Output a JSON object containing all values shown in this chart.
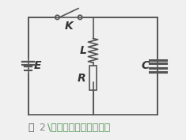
{
  "bg_color": "#f0f0f0",
  "border_color": "#888888",
  "line_color": "#555555",
  "text_color": "#333333",
  "caption_color_tu": "#555555",
  "caption_color_num": "#888888",
  "caption_color_text": "#4a9a4a",
  "caption": "图 2 \\电磁阀断开时等效电路",
  "label_K": "K",
  "label_E": "E",
  "label_L": "L",
  "label_R": "R",
  "label_C": "C",
  "figsize": [
    2.35,
    1.77
  ],
  "dpi": 100
}
